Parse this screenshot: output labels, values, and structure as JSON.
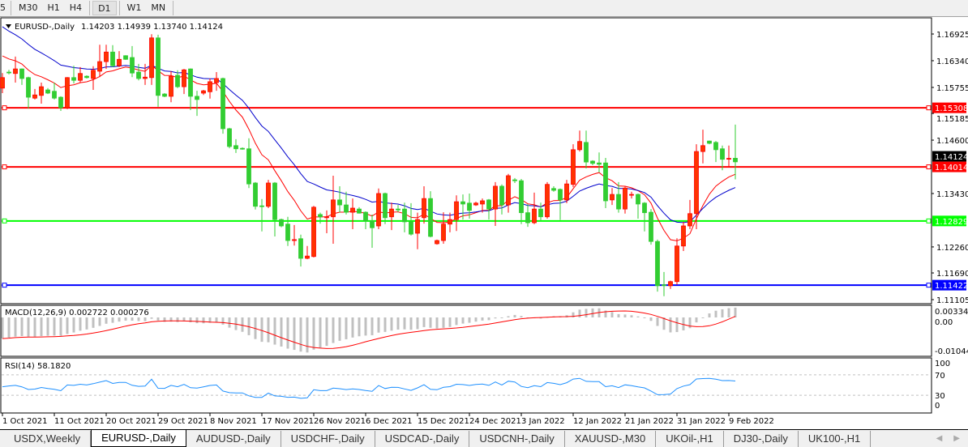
{
  "toolbar": {
    "timeframes": [
      "5",
      "M30",
      "H1",
      "H4",
      "D1",
      "W1",
      "MN"
    ],
    "active": "D1"
  },
  "chart_title": {
    "arrow_icon": "triangle-down-icon",
    "symbol": "EURUSD-,Daily",
    "ohlc_text": "1.14203 1.14939 1.13740 1.14124"
  },
  "tabs": [
    "USDX,Weekly",
    "EURUSD-,Daily",
    "AUDUSD-,Daily",
    "USDCHF-,Daily",
    "USDCAD-,Daily",
    "USDCNH-,Daily",
    "XAUUSD-,M30",
    "UKOil-,H1",
    "DJ30-,Daily",
    "UK100-,H1"
  ],
  "active_tab": "EURUSD-,Daily",
  "chart_data": {
    "type": "candlestick",
    "symbol": "EURUSD-",
    "timeframe": "Daily",
    "up_color": "#ff3300",
    "down_color": "#32cd32",
    "ylim": [
      1.11105,
      1.16925
    ],
    "price_ticks": [
      "1.16925",
      "1.16340",
      "1.15755",
      "1.15185",
      "1.14600",
      "1.13430",
      "1.12260",
      "1.11690",
      "1.11105"
    ],
    "x_tick_labels": [
      "1 Oct 2021",
      "11 Oct 2021",
      "20 Oct 2021",
      "29 Oct 2021",
      "8 Nov 2021",
      "17 Nov 2021",
      "26 Nov 2021",
      "6 Dec 2021",
      "15 Dec 2021",
      "24 Dec 2021",
      "3 Jan 2022",
      "12 Jan 2022",
      "21 Jan 2022",
      "31 Jan 2022",
      "9 Feb 2022"
    ],
    "current_price": {
      "value": 1.14124,
      "label": "1.14124"
    },
    "levels": [
      {
        "price": 1.15308,
        "label": "1.15308",
        "color": "#ff0000"
      },
      {
        "price": 1.14014,
        "label": "1.14014",
        "color": "#ff0000"
      },
      {
        "price": 1.12829,
        "label": "1.12829",
        "color": "#00ff00"
      },
      {
        "price": 1.11422,
        "label": "1.11422",
        "color": "#0000ff"
      }
    ],
    "moving_averages": [
      {
        "color": "#ff0000"
      },
      {
        "color": "#0000cc"
      }
    ],
    "ohlc": [
      [
        1.1574,
        1.1607,
        1.1563,
        1.1597
      ],
      [
        1.1609,
        1.1614,
        1.1604,
        1.1608
      ],
      [
        1.1606,
        1.1643,
        1.1586,
        1.1616
      ],
      [
        1.1616,
        1.1617,
        1.1581,
        1.1595
      ],
      [
        1.1597,
        1.1599,
        1.1529,
        1.1554
      ],
      [
        1.1552,
        1.1572,
        1.1549,
        1.1559
      ],
      [
        1.1558,
        1.1586,
        1.154,
        1.1577
      ],
      [
        1.157,
        1.1574,
        1.1561,
        1.1563
      ],
      [
        1.1567,
        1.1586,
        1.1549,
        1.1552
      ],
      [
        1.1554,
        1.1556,
        1.1524,
        1.1531
      ],
      [
        1.1531,
        1.1598,
        1.1528,
        1.1597
      ],
      [
        1.1597,
        1.1623,
        1.1584,
        1.1591
      ],
      [
        1.1591,
        1.162,
        1.1586,
        1.1606
      ],
      [
        1.16,
        1.1602,
        1.1595,
        1.1597
      ],
      [
        1.1595,
        1.1622,
        1.157,
        1.1613
      ],
      [
        1.1611,
        1.1669,
        1.1598,
        1.1632
      ],
      [
        1.1632,
        1.1669,
        1.1616,
        1.1653
      ],
      [
        1.1653,
        1.1668,
        1.162,
        1.1623
      ],
      [
        1.1623,
        1.1655,
        1.162,
        1.1637
      ],
      [
        1.1645,
        1.1646,
        1.1636,
        1.1637
      ],
      [
        1.1641,
        1.1666,
        1.1598,
        1.1607
      ],
      [
        1.1609,
        1.1627,
        1.1591,
        1.1595
      ],
      [
        1.1595,
        1.1627,
        1.1581,
        1.1598
      ],
      [
        1.1597,
        1.1692,
        1.1581,
        1.1684
      ],
      [
        1.1684,
        1.1691,
        1.1533,
        1.1558
      ],
      [
        1.1561,
        1.1563,
        1.1554,
        1.1556
      ],
      [
        1.1556,
        1.1611,
        1.1543,
        1.16
      ],
      [
        1.1602,
        1.1613,
        1.1574,
        1.1577
      ],
      [
        1.1577,
        1.1616,
        1.1561,
        1.1614
      ],
      [
        1.1616,
        1.1617,
        1.1526,
        1.1556
      ],
      [
        1.1556,
        1.1568,
        1.1513,
        1.1549
      ],
      [
        1.1563,
        1.157,
        1.1559,
        1.1568
      ],
      [
        1.1566,
        1.1595,
        1.1551,
        1.1588
      ],
      [
        1.1586,
        1.1609,
        1.1568,
        1.1595
      ],
      [
        1.1595,
        1.1597,
        1.1474,
        1.1485
      ],
      [
        1.1485,
        1.1487,
        1.1442,
        1.1446
      ],
      [
        1.1448,
        1.1462,
        1.1432,
        1.1441
      ],
      [
        1.1442,
        1.1444,
        1.1439,
        1.1441
      ],
      [
        1.1441,
        1.1464,
        1.1355,
        1.1364
      ],
      [
        1.1366,
        1.1368,
        1.1308,
        1.1315
      ],
      [
        1.1316,
        1.1331,
        1.126,
        1.1315
      ],
      [
        1.1315,
        1.1373,
        1.1311,
        1.1366
      ],
      [
        1.1366,
        1.1368,
        1.1249,
        1.1286
      ],
      [
        1.1286,
        1.1288,
        1.1269,
        1.1272
      ],
      [
        1.1276,
        1.1292,
        1.1228,
        1.124
      ],
      [
        1.124,
        1.1274,
        1.1229,
        1.1242
      ],
      [
        1.1244,
        1.1253,
        1.1183,
        1.1201
      ],
      [
        1.1201,
        1.1228,
        1.1199,
        1.1206
      ],
      [
        1.1205,
        1.1316,
        1.1203,
        1.1313
      ],
      [
        1.1297,
        1.1301,
        1.1277,
        1.1292
      ],
      [
        1.129,
        1.1306,
        1.1256,
        1.1292
      ],
      [
        1.1292,
        1.1382,
        1.1233,
        1.1329
      ],
      [
        1.1329,
        1.1359,
        1.1301,
        1.1318
      ],
      [
        1.1318,
        1.1347,
        1.1297,
        1.1302
      ],
      [
        1.1302,
        1.1332,
        1.1265,
        1.1311
      ],
      [
        1.1309,
        1.1313,
        1.1299,
        1.13
      ],
      [
        1.1302,
        1.1304,
        1.1265,
        1.1283
      ],
      [
        1.1283,
        1.1297,
        1.1224,
        1.1268
      ],
      [
        1.1272,
        1.1354,
        1.1265,
        1.1343
      ],
      [
        1.1343,
        1.1345,
        1.1276,
        1.129
      ],
      [
        1.1292,
        1.1323,
        1.1263,
        1.1309
      ],
      [
        1.1309,
        1.1318,
        1.1302,
        1.1307
      ],
      [
        1.1309,
        1.1323,
        1.1258,
        1.1281
      ],
      [
        1.1281,
        1.1322,
        1.1251,
        1.1254
      ],
      [
        1.1256,
        1.1301,
        1.1221,
        1.1286
      ],
      [
        1.129,
        1.1359,
        1.1277,
        1.1332
      ],
      [
        1.1332,
        1.1348,
        1.1247,
        1.1249
      ],
      [
        1.1233,
        1.1242,
        1.1231,
        1.124
      ],
      [
        1.124,
        1.1302,
        1.1233,
        1.1276
      ],
      [
        1.1276,
        1.1301,
        1.1258,
        1.1286
      ],
      [
        1.1286,
        1.1339,
        1.1261,
        1.1325
      ],
      [
        1.1325,
        1.1341,
        1.1286,
        1.132
      ],
      [
        1.1322,
        1.1343,
        1.1288,
        1.1306
      ],
      [
        1.1318,
        1.1325,
        1.1316,
        1.1322
      ],
      [
        1.132,
        1.1332,
        1.1301,
        1.1327
      ],
      [
        1.1329,
        1.1331,
        1.1286,
        1.1309
      ],
      [
        1.1309,
        1.1368,
        1.1272,
        1.1359
      ],
      [
        1.1359,
        1.1363,
        1.1297,
        1.1318
      ],
      [
        1.1318,
        1.1386,
        1.1301,
        1.1382
      ],
      [
        1.1373,
        1.1377,
        1.1366,
        1.1371
      ],
      [
        1.1371,
        1.1375,
        1.1276,
        1.1301
      ],
      [
        1.1301,
        1.132,
        1.127,
        1.1279
      ],
      [
        1.1279,
        1.1345,
        1.1276,
        1.1309
      ],
      [
        1.1309,
        1.1323,
        1.1283,
        1.1292
      ],
      [
        1.1292,
        1.1368,
        1.1288,
        1.1363
      ],
      [
        1.1354,
        1.1359,
        1.1347,
        1.135
      ],
      [
        1.1352,
        1.1354,
        1.1285,
        1.1329
      ],
      [
        1.1329,
        1.1373,
        1.1322,
        1.1364
      ],
      [
        1.1363,
        1.1451,
        1.1357,
        1.1439
      ],
      [
        1.1439,
        1.1481,
        1.1435,
        1.1457
      ],
      [
        1.1455,
        1.1481,
        1.1398,
        1.1412
      ],
      [
        1.1414,
        1.1416,
        1.1405,
        1.1409
      ],
      [
        1.141,
        1.1433,
        1.1389,
        1.1407
      ],
      [
        1.141,
        1.1421,
        1.1311,
        1.1327
      ],
      [
        1.1329,
        1.1355,
        1.1318,
        1.1341
      ],
      [
        1.1341,
        1.1368,
        1.1301,
        1.1309
      ],
      [
        1.1309,
        1.1359,
        1.1299,
        1.1355
      ],
      [
        1.134,
        1.1347,
        1.1332,
        1.1341
      ],
      [
        1.1341,
        1.1343,
        1.1288,
        1.132
      ],
      [
        1.1322,
        1.1324,
        1.126,
        1.1301
      ],
      [
        1.1302,
        1.1309,
        1.1231,
        1.1238
      ],
      [
        1.1238,
        1.1242,
        1.1128,
        1.1141
      ],
      [
        1.1143,
        1.1171,
        1.1118,
        1.1142
      ],
      [
        1.1141,
        1.1152,
        1.1134,
        1.115
      ],
      [
        1.115,
        1.1245,
        1.1143,
        1.1228
      ],
      [
        1.1228,
        1.1281,
        1.1217,
        1.1272
      ],
      [
        1.1272,
        1.1329,
        1.1265,
        1.1299
      ],
      [
        1.1299,
        1.1451,
        1.1265,
        1.1435
      ],
      [
        1.1435,
        1.1483,
        1.1409,
        1.1448
      ],
      [
        1.1458,
        1.1459,
        1.1451,
        1.1453
      ],
      [
        1.1455,
        1.1458,
        1.1412,
        1.1439
      ],
      [
        1.1441,
        1.1448,
        1.1394,
        1.1418
      ],
      [
        1.1419,
        1.1448,
        1.1402,
        1.142
      ],
      [
        1.14203,
        1.14939,
        1.1374,
        1.14124
      ]
    ],
    "macd": {
      "label": "MACD(12,26,9) 0.002722 0.000276",
      "ticks": [
        "0.003348",
        "0.00",
        "-0.01044"
      ],
      "ylim": [
        -0.01044,
        0.003348
      ],
      "histogram_color": "#c0c0c0",
      "signal_color": "#ff0000"
    },
    "rsi": {
      "label": "RSI(14) 58.1820",
      "ticks": [
        "100",
        "70",
        "30",
        "0"
      ],
      "levels": [
        70,
        30
      ],
      "ylim": [
        0,
        100
      ],
      "color": "#1e90ff"
    }
  }
}
